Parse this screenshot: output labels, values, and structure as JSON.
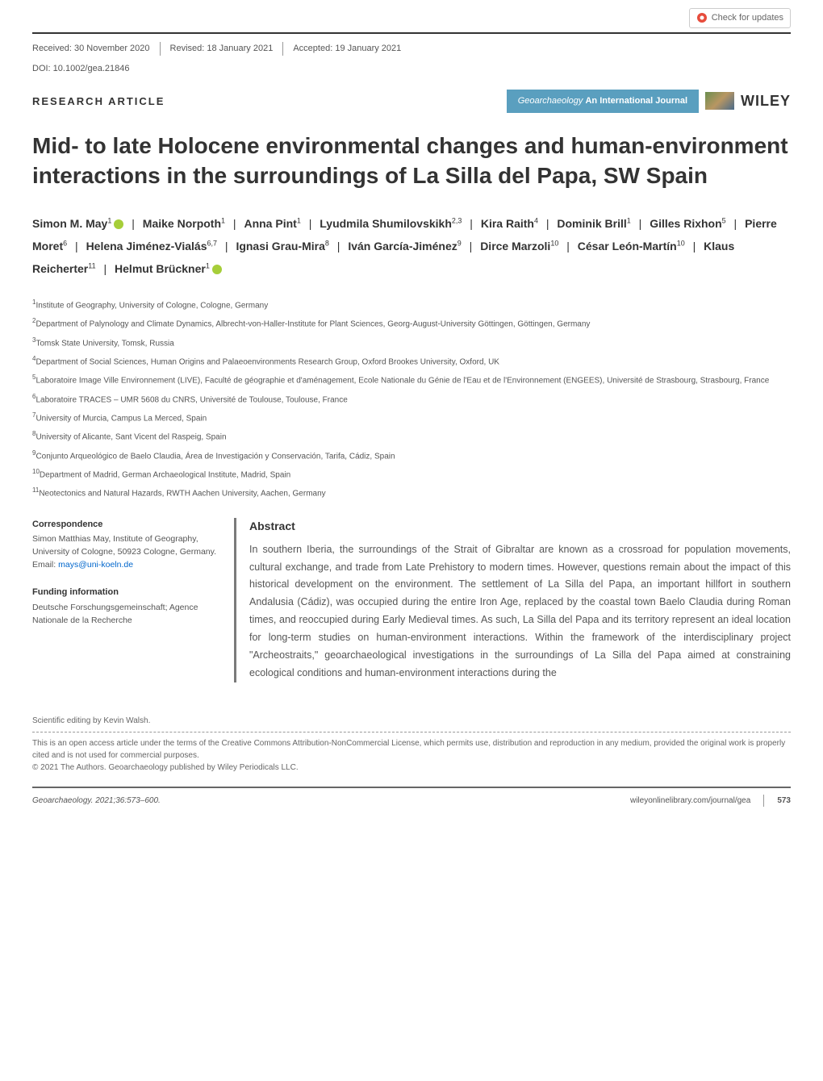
{
  "check_updates": "Check for updates",
  "meta": {
    "received": "Received: 30 November 2020",
    "revised": "Revised: 18 January 2021",
    "accepted": "Accepted: 19 January 2021",
    "doi": "DOI: 10.1002/gea.21846"
  },
  "article_type": "RESEARCH ARTICLE",
  "journal": {
    "name": "Geoarchaeology",
    "tag": "An International Journal",
    "publisher": "WILEY"
  },
  "title": "Mid- to late Holocene environmental changes and human-environment interactions in the surroundings of La Silla del Papa, SW Spain",
  "authors": [
    {
      "name": "Simon M. May",
      "aff": "1",
      "orcid": true
    },
    {
      "name": "Maike Norpoth",
      "aff": "1"
    },
    {
      "name": "Anna Pint",
      "aff": "1"
    },
    {
      "name": "Lyudmila Shumilovskikh",
      "aff": "2,3"
    },
    {
      "name": "Kira Raith",
      "aff": "4"
    },
    {
      "name": "Dominik Brill",
      "aff": "1"
    },
    {
      "name": "Gilles Rixhon",
      "aff": "5"
    },
    {
      "name": "Pierre Moret",
      "aff": "6"
    },
    {
      "name": "Helena Jiménez-Vialás",
      "aff": "6,7"
    },
    {
      "name": "Ignasi Grau-Mira",
      "aff": "8"
    },
    {
      "name": "Iván García-Jiménez",
      "aff": "9"
    },
    {
      "name": "Dirce Marzoli",
      "aff": "10"
    },
    {
      "name": "César León-Martín",
      "aff": "10"
    },
    {
      "name": "Klaus Reicherter",
      "aff": "11"
    },
    {
      "name": "Helmut Brückner",
      "aff": "1",
      "orcid": true
    }
  ],
  "affiliations": [
    "Institute of Geography, University of Cologne, Cologne, Germany",
    "Department of Palynology and Climate Dynamics, Albrecht-von-Haller-Institute for Plant Sciences, Georg-August-University Göttingen, Göttingen, Germany",
    "Tomsk State University, Tomsk, Russia",
    "Department of Social Sciences, Human Origins and Palaeoenvironments Research Group, Oxford Brookes University, Oxford, UK",
    "Laboratoire Image Ville Environnement (LIVE), Faculté de géographie et d'aménagement, Ecole Nationale du Génie de l'Eau et de l'Environnement (ENGEES), Université de Strasbourg, Strasbourg, France",
    "Laboratoire TRACES – UMR 5608 du CNRS, Université de Toulouse, Toulouse, France",
    "University of Murcia, Campus La Merced, Spain",
    "University of Alicante, Sant Vicent del Raspeig, Spain",
    "Conjunto Arqueológico de Baelo Claudia, Área de Investigación y Conservación, Tarifa, Cádiz, Spain",
    "Department of Madrid, German Archaeological Institute, Madrid, Spain",
    "Neotectonics and Natural Hazards, RWTH Aachen University, Aachen, Germany"
  ],
  "correspondence": {
    "heading": "Correspondence",
    "body": "Simon Matthias May, Institute of Geography, University of Cologne, 50923 Cologne, Germany.",
    "email_label": "Email:",
    "email": "mays@uni-koeln.de"
  },
  "funding": {
    "heading": "Funding information",
    "body": "Deutsche Forschungsgemeinschaft; Agence Nationale de la Recherche"
  },
  "abstract": {
    "heading": "Abstract",
    "text": "In southern Iberia, the surroundings of the Strait of Gibraltar are known as a crossroad for population movements, cultural exchange, and trade from Late Prehistory to modern times. However, questions remain about the impact of this historical development on the environment. The settlement of La Silla del Papa, an important hillfort in southern Andalusia (Cádiz), was occupied during the entire Iron Age, replaced by the coastal town Baelo Claudia during Roman times, and reoccupied during Early Medieval times. As such, La Silla del Papa and its territory represent an ideal location for long-term studies on human-environment interactions. Within the framework of the interdisciplinary project \"Archeostraits,\" geoarchaeological investigations in the surroundings of La Silla del Papa aimed at constraining ecological conditions and human-environment interactions during the"
  },
  "editor_note": "Scientific editing by Kevin Walsh.",
  "license": {
    "line1": "This is an open access article under the terms of the Creative Commons Attribution-NonCommercial License, which permits use, distribution and reproduction in any medium, provided the original work is properly cited and is not used for commercial purposes.",
    "line2": "© 2021 The Authors. Geoarchaeology published by Wiley Periodicals LLC."
  },
  "footer": {
    "citation": "Geoarchaeology. 2021;36:573–600.",
    "url": "wileyonlinelibrary.com/journal/gea",
    "page": "573"
  },
  "colors": {
    "journal_bg": "#5a9fbf",
    "orcid": "#a6ce39",
    "link": "#0066cc",
    "text": "#333333",
    "muted": "#555555"
  }
}
